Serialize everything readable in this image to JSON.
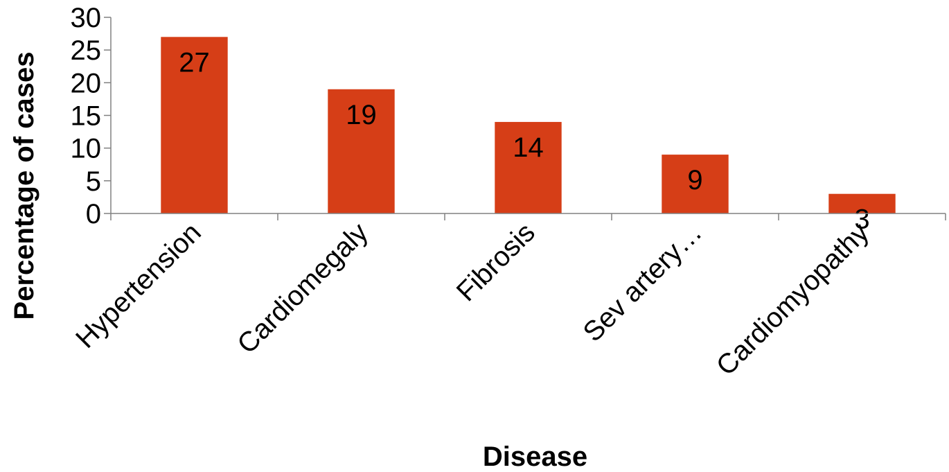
{
  "chart_data": {
    "type": "bar",
    "categories": [
      "Hypertension",
      "Cardiomegaly",
      "Fibrosis",
      "Sev artery…",
      "Cardiomyopathy"
    ],
    "values": [
      27,
      19,
      14,
      9,
      3
    ],
    "data_labels": [
      "27",
      "19",
      "14",
      "9",
      "3"
    ],
    "xlabel": "Disease",
    "ylabel": "Percentage of cases",
    "ylim": [
      0,
      30
    ],
    "yticks": [
      "0",
      "5",
      "10",
      "15",
      "20",
      "25",
      "30"
    ],
    "bar_color": "#D63E17",
    "grid": false,
    "legend": "none"
  }
}
